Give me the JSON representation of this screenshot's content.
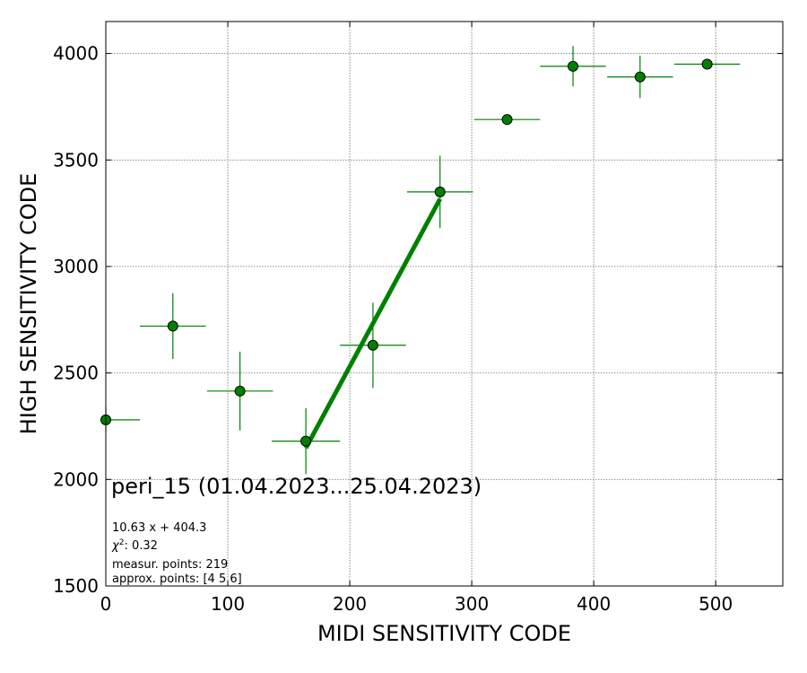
{
  "chart_data": {
    "type": "scatter",
    "xlabel": "MIDI SENSITIVITY CODE",
    "ylabel": "HIGH SENSITIVITY CODE",
    "xlim": [
      0,
      555
    ],
    "ylim": [
      1500,
      4150
    ],
    "xticks": [
      0,
      100,
      200,
      300,
      400,
      500
    ],
    "yticks": [
      1500,
      2000,
      2500,
      3000,
      3500,
      4000
    ],
    "grid": true,
    "points": [
      {
        "x": 0,
        "y": 2280,
        "xerr": 28,
        "yerr": 60
      },
      {
        "x": 55,
        "y": 2720,
        "xerr": 27,
        "yerr": 155
      },
      {
        "x": 110,
        "y": 2415,
        "xerr": 27,
        "yerr": 185
      },
      {
        "x": 164,
        "y": 2180,
        "xerr": 28,
        "yerr": 155
      },
      {
        "x": 219,
        "y": 2630,
        "xerr": 27,
        "yerr": 200
      },
      {
        "x": 274,
        "y": 3350,
        "xerr": 27,
        "yerr": 170
      },
      {
        "x": 329,
        "y": 3690,
        "xerr": 27,
        "yerr": 0
      },
      {
        "x": 383,
        "y": 3940,
        "xerr": 27,
        "yerr": 95
      },
      {
        "x": 438,
        "y": 3890,
        "xerr": 27,
        "yerr": 100
      },
      {
        "x": 493,
        "y": 3950,
        "xerr": 27,
        "yerr": 0
      }
    ],
    "fit_line": {
      "slope": 10.63,
      "intercept": 404.3,
      "x_range": [
        164,
        274
      ]
    },
    "colors": {
      "marker": "#008000",
      "errorbar": "#008000",
      "fit": "#008000",
      "grid": "#808080"
    },
    "annotations": {
      "title": "peri_15 (01.04.2023...25.04.2023)",
      "equation": "10.63 x + 404.3",
      "chi2_label": "χ",
      "chi2_sup": "2",
      "chi2_value": ": 0.32",
      "measured": "measur. points: 219",
      "approx": "approx. points: [4 5 6]"
    }
  }
}
